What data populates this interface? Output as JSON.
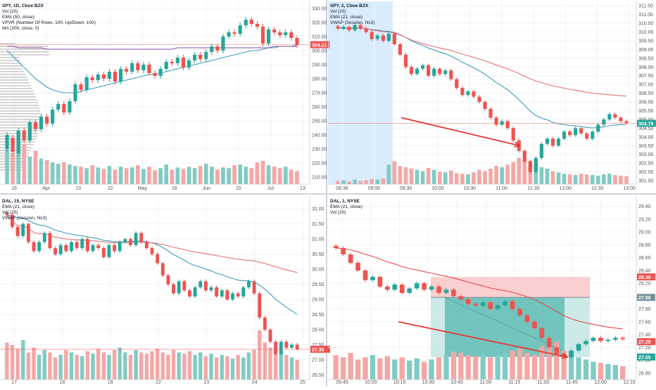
{
  "colors": {
    "up": "#26a69a",
    "down": "#ef5350",
    "vol_up": "#80cbc4",
    "vol_down": "#f4a7a5",
    "ema": "#3d9dbd",
    "ema2": "#e64a4a",
    "ma_purple": "#8e4a9c",
    "vwap": "#e57373",
    "grid": "#f0f3fa",
    "axis_text": "#555555",
    "divider": "#d0d3db",
    "annot": "#e53935"
  },
  "chart_data": [
    {
      "type": "candlestick",
      "title": "SPY, 1D, Cboe BZX",
      "indicators": [
        "Vol (20)",
        "EMA (50, close)",
        "VPVR (Number Of Rows, 100, Up/Down, 100)",
        "MA (200, close, 0)"
      ],
      "y_ticks": [
        "330.00",
        "320.00",
        "310.00",
        "300.00",
        "290.00",
        "280.00",
        "270.00",
        "260.00",
        "250.00",
        "240.00",
        "230.00",
        "220.00",
        "210.00"
      ],
      "ylim": [
        205,
        335
      ],
      "x_ticks": [
        "16",
        "Apr",
        "13",
        "22",
        "May",
        "18",
        "Jun",
        "15",
        "Jul",
        "13"
      ],
      "last_price_label": "304.21",
      "last_price": 304.21,
      "candles": [
        [
          230,
          240
        ],
        [
          238,
          228
        ],
        [
          227,
          243
        ],
        [
          243,
          236
        ],
        [
          236,
          249
        ],
        [
          249,
          244
        ],
        [
          244,
          253
        ],
        [
          253,
          248
        ],
        [
          248,
          258
        ],
        [
          258,
          262
        ],
        [
          262,
          256
        ],
        [
          256,
          264
        ],
        [
          264,
          276
        ],
        [
          276,
          272
        ],
        [
          272,
          281
        ],
        [
          281,
          279
        ],
        [
          279,
          283
        ],
        [
          283,
          280
        ],
        [
          280,
          285
        ],
        [
          285,
          278
        ],
        [
          278,
          287
        ],
        [
          287,
          285
        ],
        [
          285,
          291
        ],
        [
          291,
          286
        ],
        [
          286,
          290
        ],
        [
          290,
          284
        ],
        [
          284,
          282
        ],
        [
          282,
          287
        ],
        [
          287,
          292
        ],
        [
          292,
          291
        ],
        [
          291,
          295
        ],
        [
          295,
          288
        ],
        [
          288,
          293
        ],
        [
          293,
          297
        ],
        [
          297,
          294
        ],
        [
          294,
          299
        ],
        [
          299,
          303
        ],
        [
          303,
          300
        ],
        [
          300,
          310
        ],
        [
          310,
          313
        ],
        [
          313,
          312
        ],
        [
          312,
          318
        ],
        [
          318,
          322
        ],
        [
          322,
          319
        ],
        [
          319,
          317
        ],
        [
          317,
          305
        ],
        [
          305,
          315
        ],
        [
          315,
          313
        ],
        [
          313,
          311
        ],
        [
          311,
          313
        ],
        [
          313,
          309
        ],
        [
          309,
          304
        ]
      ],
      "volumes": [
        48,
        42,
        60,
        55,
        38,
        46,
        35,
        33,
        30,
        28,
        30,
        27,
        25,
        24,
        22,
        26,
        23,
        21,
        25,
        20,
        24,
        22,
        23,
        26,
        21,
        24,
        19,
        22,
        27,
        20,
        23,
        21,
        24,
        22,
        25,
        28,
        24,
        20,
        23,
        22,
        26,
        27,
        24,
        22,
        30,
        32,
        26,
        24,
        22,
        24,
        20,
        18
      ],
      "ema50": [
        300,
        296,
        292,
        288,
        284,
        280,
        277,
        274,
        272,
        271,
        270,
        270,
        270,
        271,
        272,
        273,
        274,
        275,
        276,
        277,
        278,
        279,
        280,
        281,
        282,
        283,
        283,
        284,
        285,
        286,
        287,
        288,
        289,
        290,
        291,
        292,
        293,
        294,
        295,
        296,
        297,
        298,
        299,
        300,
        300,
        301,
        302,
        302,
        303,
        303,
        303,
        304
      ],
      "ma200": [
        303,
        303,
        302,
        302,
        302,
        302,
        302,
        301,
        301,
        301,
        301,
        301,
        301,
        301,
        301,
        301,
        301,
        301,
        301,
        301,
        301,
        301,
        301,
        301,
        301,
        301,
        301,
        301,
        301,
        301,
        302,
        302,
        302,
        302,
        302,
        302,
        302,
        302,
        302,
        302,
        302,
        302,
        302,
        302,
        302,
        302,
        302,
        303,
        303,
        303,
        303,
        303
      ]
    },
    {
      "type": "candlestick",
      "title": "SPY, 2, Cboe BZX",
      "indicators": [
        "Vol (20)",
        "EMA (21, close)",
        "VWAP (Session, hlc3)"
      ],
      "y_ticks": [
        "311.50",
        "311.00",
        "310.50",
        "310.00",
        "309.50",
        "309.00",
        "308.50",
        "308.00",
        "307.50",
        "307.00",
        "306.50",
        "306.00",
        "305.50",
        "305.00",
        "304.50",
        "304.00",
        "303.50",
        "303.00",
        "302.50",
        "302.00",
        "301.50"
      ],
      "ylim": [
        301.3,
        311.75
      ],
      "x_ticks": [
        "08:36",
        "09:00",
        "09:30",
        "10:00",
        "10:30",
        "11:00",
        "11:30",
        "12:00",
        "12:30",
        "13:00"
      ],
      "last_price_label": "304.78",
      "last_price": 304.78,
      "premarket_shaded": true,
      "close_path": [
        310.2,
        310.3,
        310.1,
        310.4,
        310.2,
        310.0,
        309.6,
        309.8,
        309.5,
        309.9,
        309.3,
        308.7,
        308.0,
        307.6,
        307.9,
        308.1,
        307.5,
        307.9,
        307.6,
        307.8,
        307.3,
        306.8,
        306.4,
        306.6,
        306.3,
        306.0,
        305.6,
        305.1,
        304.7,
        304.9,
        304.5,
        303.8,
        303.2,
        302.6,
        302.0,
        302.8,
        303.6,
        303.9,
        303.5,
        303.9,
        304.3,
        304.1,
        304.5,
        304.2,
        303.9,
        304.3,
        304.7,
        305.0,
        305.3,
        305.1,
        304.9,
        304.8
      ],
      "volumes": [
        5,
        6,
        4,
        7,
        5,
        6,
        8,
        7,
        9,
        30,
        35,
        28,
        26,
        24,
        22,
        20,
        25,
        22,
        19,
        18,
        21,
        17,
        16,
        15,
        18,
        22,
        20,
        24,
        28,
        26,
        30,
        34,
        40,
        38,
        36,
        30,
        26,
        24,
        20,
        18,
        16,
        15,
        14,
        16,
        15,
        14,
        13,
        15,
        16,
        14,
        13,
        12
      ],
      "annotation": "arrow"
    },
    {
      "type": "candlestick",
      "title": "DAL, 15, NYSE",
      "indicators": [
        "EMA (21, close)",
        "Vol (20)",
        "VWAP (Session, hlc3)"
      ],
      "y_ticks": [
        "32.00",
        "31.50",
        "31.00",
        "30.50",
        "30.00",
        "29.50",
        "29.00",
        "28.50",
        "28.00",
        "27.50",
        "27.00",
        "26.50"
      ],
      "ylim": [
        26.35,
        32.4
      ],
      "x_ticks": [
        "17",
        "18",
        "19",
        "22",
        "23",
        "24",
        "25"
      ],
      "last_price_label": "27.35",
      "last_price": 27.35,
      "close_path": [
        31.8,
        31.4,
        31.1,
        31.5,
        30.9,
        30.6,
        30.9,
        31.2,
        30.7,
        30.5,
        30.8,
        30.6,
        30.9,
        30.7,
        31.0,
        30.6,
        30.8,
        30.7,
        30.4,
        30.8,
        30.6,
        30.9,
        31.0,
        30.8,
        31.2,
        30.9,
        30.7,
        30.5,
        30.2,
        29.8,
        29.5,
        29.2,
        29.6,
        29.3,
        29.1,
        29.4,
        29.6,
        29.3,
        29.4,
        29.1,
        29.3,
        29.0,
        29.2,
        29.1,
        29.4,
        29.6,
        29.2,
        28.4,
        28.0,
        27.6,
        27.2,
        27.6,
        27.4,
        27.5,
        27.35
      ],
      "volumes": [
        30,
        28,
        25,
        32,
        22,
        26,
        20,
        24,
        22,
        18,
        20,
        24,
        22,
        20,
        19,
        23,
        21,
        25,
        22,
        20,
        24,
        26,
        22,
        20,
        24,
        22,
        21,
        23,
        25,
        22,
        20,
        24,
        22,
        21,
        23,
        20,
        22,
        19,
        21,
        18,
        20,
        19,
        17,
        20,
        18,
        22,
        24,
        40,
        30,
        26,
        24,
        22,
        20,
        18,
        16
      ]
    },
    {
      "type": "candlestick",
      "title": "DAL, 1, NYSE",
      "indicators": [
        "EMA (21, close)",
        "Vol (20)"
      ],
      "y_ticks": [
        "29.40",
        "29.20",
        "29.00",
        "28.80",
        "28.60",
        "28.40",
        "28.20",
        "28.00",
        "27.80",
        "27.60",
        "27.40",
        "27.20",
        "27.00",
        "26.80"
      ],
      "ylim": [
        26.7,
        29.55
      ],
      "x_ticks": [
        "09:45",
        "10:00",
        "10:15",
        "10:30",
        "10:45",
        "11:00",
        "11:15",
        "11:30",
        "11:45",
        "12:00",
        "12:15"
      ],
      "price_labels": [
        "28.30",
        "27.98",
        "27.29",
        "27.05"
      ],
      "position": {
        "entry": 27.98,
        "stop": 28.3,
        "target": 27.05
      },
      "close_path": [
        28.75,
        28.65,
        28.52,
        28.4,
        28.25,
        28.3,
        28.15,
        28.1,
        28.18,
        28.05,
        28.12,
        28.2,
        28.1,
        28.15,
        28.05,
        28.1,
        28.0,
        27.95,
        27.88,
        27.85,
        27.9,
        27.8,
        27.86,
        27.92,
        27.8,
        27.7,
        27.6,
        27.5,
        27.35,
        27.2,
        27.1,
        27.05,
        27.15,
        27.25,
        27.3,
        27.35,
        27.3,
        27.32,
        27.35,
        27.33
      ],
      "volumes": [
        22,
        20,
        24,
        18,
        20,
        22,
        19,
        21,
        18,
        20,
        17,
        19,
        16,
        18,
        20,
        22,
        25,
        24,
        22,
        21,
        23,
        20,
        22,
        24,
        26,
        28,
        24,
        22,
        30,
        38,
        34,
        26,
        22,
        20,
        18,
        16,
        15,
        14,
        13,
        12
      ],
      "annotation": "arrow"
    }
  ]
}
